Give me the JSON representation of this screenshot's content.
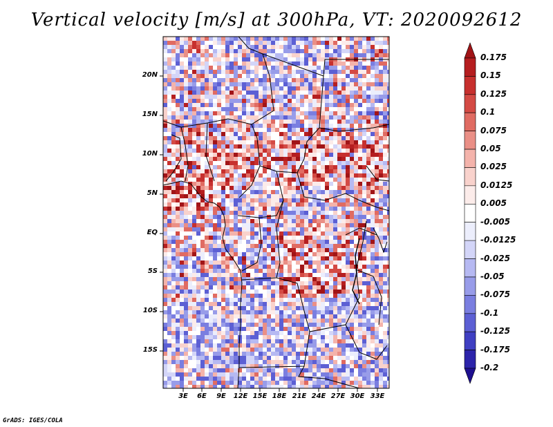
{
  "title": "Vertical velocity [m/s] at 300hPa, VT: 2020092612",
  "credit": "GrADS: IGES/COLA",
  "lat_labels": [
    "20N",
    "15N",
    "10N",
    "5N",
    "EQ",
    "5S",
    "10S",
    "15S"
  ],
  "lon_labels": [
    "3E",
    "6E",
    "9E",
    "12E",
    "15E",
    "18E",
    "21E",
    "24E",
    "27E",
    "30E",
    "33E"
  ],
  "colorbar": {
    "labels": [
      "0.175",
      "0.15",
      "0.125",
      "0.1",
      "0.075",
      "0.05",
      "0.025",
      "0.0125",
      "0.005",
      "-0.005",
      "-0.0125",
      "-0.025",
      "-0.05",
      "-0.075",
      "-0.1",
      "-0.125",
      "-0.175",
      "-0.2"
    ],
    "colors": [
      "#a11417",
      "#b51e20",
      "#c7302e",
      "#d44a44",
      "#e06b62",
      "#ea8f86",
      "#f4b3ab",
      "#f9d2cc",
      "#fcecea",
      "#ffffff",
      "#eceefc",
      "#d3d5f8",
      "#b6b9f2",
      "#989ce9",
      "#7a7ee0",
      "#5c5fd4",
      "#3f3fc2",
      "#2c24aa",
      "#1d0f8f"
    ]
  }
}
